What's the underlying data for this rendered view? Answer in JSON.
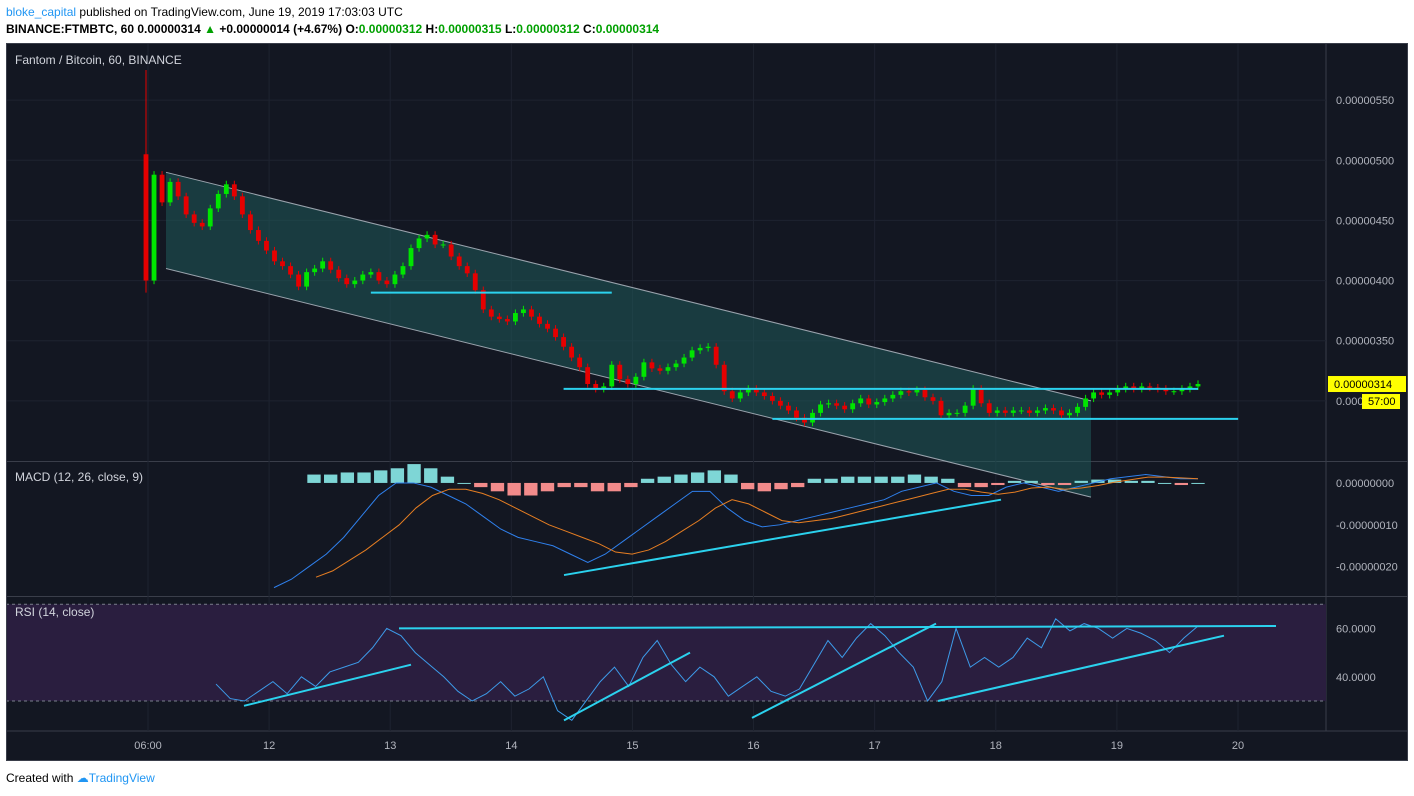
{
  "header": {
    "author": "bloke_capital",
    "published": "published on TradingView.com, June 19, 2019 17:03:03 UTC",
    "symbol": "BINANCE:FTMBTC, 60",
    "last": "0.00000314",
    "change": "+0.00000014 (+4.67%)",
    "o_label": "O:",
    "o": "0.00000312",
    "h_label": "H:",
    "h": "0.00000315",
    "l_label": "L:",
    "l": "0.00000312",
    "c_label": "C:",
    "c": "0.00000314"
  },
  "footer": {
    "created": "Created with",
    "brand": "TradingView"
  },
  "colors": {
    "background": "#131722",
    "up": "#00e600",
    "down": "#e60000",
    "trendline": "#2bd2ee",
    "channel_fill": "#1f5a5a",
    "macd_line": "#2f80ed",
    "signal_line": "#e67e22",
    "rsi_line": "#3d9be9",
    "rsi_band": "#2a1e3f",
    "price_tag": "#ffff00"
  },
  "chart_data": [
    {
      "type": "candlestick",
      "title": "Fantom / Bitcoin, 60, BINANCE",
      "price_tag": "0.00000314",
      "countdown": "57:00",
      "y_ticks": [
        "0.00000550",
        "0.00000500",
        "0.00000450",
        "0.00000400",
        "0.00000350",
        "0.00000300"
      ],
      "x_ticks": [
        "06:00",
        "12",
        "13",
        "14",
        "15",
        "16",
        "17",
        "18",
        "19",
        "20"
      ],
      "ylim": [
        2.5e-06,
        5.95e-06
      ],
      "series": [
        {
          "name": "FTMBTC",
          "close": [
            4e-06,
            4.88e-06,
            4.65e-06,
            4.82e-06,
            4.7e-06,
            4.55e-06,
            4.48e-06,
            4.45e-06,
            4.6e-06,
            4.72e-06,
            4.8e-06,
            4.7e-06,
            4.55e-06,
            4.42e-06,
            4.33e-06,
            4.25e-06,
            4.16e-06,
            4.12e-06,
            4.05e-06,
            3.95e-06,
            4.07e-06,
            4.1e-06,
            4.16e-06,
            4.09e-06,
            4.02e-06,
            3.97e-06,
            4e-06,
            4.05e-06,
            4.07e-06,
            4e-06,
            3.97e-06,
            4.05e-06,
            4.12e-06,
            4.27e-06,
            4.35e-06,
            4.38e-06,
            4.3e-06,
            4.3e-06,
            4.2e-06,
            4.12e-06,
            4.06e-06,
            3.92e-06,
            3.76e-06,
            3.7e-06,
            3.68e-06,
            3.66e-06,
            3.73e-06,
            3.76e-06,
            3.7e-06,
            3.64e-06,
            3.6e-06,
            3.53e-06,
            3.45e-06,
            3.36e-06,
            3.28e-06,
            3.14e-06,
            3.1e-06,
            3.12e-06,
            3.3e-06,
            3.18e-06,
            3.14e-06,
            3.2e-06,
            3.32e-06,
            3.27e-06,
            3.25e-06,
            3.28e-06,
            3.31e-06,
            3.36e-06,
            3.42e-06,
            3.44e-06,
            3.45e-06,
            3.3e-06,
            3.08e-06,
            3.02e-06,
            3.07e-06,
            3.1e-06,
            3.07e-06,
            3.04e-06,
            3e-06,
            2.96e-06,
            2.92e-06,
            2.86e-06,
            2.82e-06,
            2.9e-06,
            2.97e-06,
            2.98e-06,
            2.96e-06,
            2.93e-06,
            2.98e-06,
            3.02e-06,
            2.97e-06,
            2.99e-06,
            3.02e-06,
            3.05e-06,
            3.08e-06,
            3.07e-06,
            3.09e-06,
            3.03e-06,
            3e-06,
            2.88e-06,
            2.9e-06,
            2.9e-06,
            2.96e-06,
            3.1e-06,
            2.98e-06,
            2.9e-06,
            2.92e-06,
            2.9e-06,
            2.92e-06,
            2.92e-06,
            2.9e-06,
            2.92e-06,
            2.94e-06,
            2.92e-06,
            2.88e-06,
            2.9e-06,
            2.95e-06,
            3.02e-06,
            3.07e-06,
            3.05e-06,
            3.07e-06,
            3.1e-06,
            3.12e-06,
            3.1e-06,
            3.12e-06,
            3.11e-06,
            3.1e-06,
            3.08e-06,
            3.08e-06,
            3.1e-06,
            3.12e-06,
            3.14e-06
          ]
        }
      ],
      "channel": {
        "upper": [
          4.9e-06,
          3e-06
        ],
        "lower": [
          4.1e-06,
          2.2e-06
        ]
      },
      "levels": [
        {
          "value": 3.9e-06,
          "x0": 28,
          "x1": 58
        },
        {
          "value": 3.1e-06,
          "x0": 52,
          "x1": 131
        },
        {
          "value": 2.85e-06,
          "x0": 78,
          "x1": 136
        }
      ]
    },
    {
      "type": "line",
      "title": "MACD (12, 26, close, 9)",
      "y_ticks": [
        "0.00000000",
        "-0.00000010",
        "-0.00000020"
      ],
      "ylim": [
        -2.7e-07,
        5e-08
      ],
      "series": [
        {
          "name": "MACD",
          "values": [
            -2.5e-07,
            -2.3e-07,
            -2e-07,
            -1.7e-07,
            -1.3e-07,
            -8e-08,
            -3e-08,
            0,
            0,
            -1e-08,
            -3e-08,
            -5e-08,
            -8e-08,
            -1.1e-07,
            -1.3e-07,
            -1.4e-07,
            -1.5e-07,
            -1.7e-07,
            -1.9e-07,
            -1.7e-07,
            -1.4e-07,
            -1.1e-07,
            -8e-08,
            -5e-08,
            -2e-08,
            -2e-08,
            -6e-08,
            -9e-08,
            -1.05e-07,
            -1e-07,
            -9e-08,
            -8e-08,
            -7e-08,
            -6e-08,
            -5e-08,
            -4e-08,
            -2e-08,
            -1e-08,
            0,
            -2e-08,
            -3e-08,
            -3e-08,
            -1e-08,
            0,
            -1e-08,
            -2e-08,
            -1e-08,
            0,
            1e-08,
            1.5e-08,
            2e-08,
            1.5e-08,
            1e-08,
            1e-08
          ]
        },
        {
          "name": "Signal",
          "values": [
            -2.25e-07,
            -2.1e-07,
            -1.85e-07,
            -1.6e-07,
            -1.3e-07,
            -1e-07,
            -6e-08,
            -3e-08,
            -1.5e-08,
            -1.5e-08,
            -2.5e-08,
            -4e-08,
            -6e-08,
            -8e-08,
            -1e-07,
            -1.15e-07,
            -1.3e-07,
            -1.45e-07,
            -1.65e-07,
            -1.7e-07,
            -1.6e-07,
            -1.4e-07,
            -1.15e-07,
            -9e-08,
            -6e-08,
            -4e-08,
            -5e-08,
            -7e-08,
            -9e-08,
            -9.5e-08,
            -9e-08,
            -8.5e-08,
            -7.5e-08,
            -6.5e-08,
            -5.5e-08,
            -4.5e-08,
            -3.5e-08,
            -2.5e-08,
            -1.5e-08,
            -1.5e-08,
            -2.2e-08,
            -2.7e-08,
            -2.2e-08,
            -1.2e-08,
            -1e-08,
            -1.5e-08,
            -1.2e-08,
            -6e-09,
            2e-09,
            8e-09,
            1.4e-08,
            1.4e-08,
            1.2e-08,
            1e-08
          ]
        }
      ],
      "histogram": [
        2e-08,
        2e-08,
        2.5e-08,
        2.5e-08,
        3e-08,
        3.5e-08,
        4.5e-08,
        3.5e-08,
        1.5e-08,
        0,
        -1e-08,
        -2e-08,
        -3e-08,
        -3e-08,
        -2e-08,
        -1e-08,
        -1e-08,
        -2e-08,
        -2e-08,
        -1e-08,
        1e-08,
        1.5e-08,
        2e-08,
        2.5e-08,
        3e-08,
        2e-08,
        -1.5e-08,
        -2e-08,
        -1.5e-08,
        -1e-08,
        1e-08,
        1e-08,
        1.5e-08,
        1.5e-08,
        1.5e-08,
        1.5e-08,
        2e-08,
        1.5e-08,
        1e-08,
        -1e-08,
        -1e-08,
        -5e-09,
        5e-09,
        5e-09,
        -5e-09,
        -5e-09,
        5e-09,
        8e-09,
        8e-09,
        5e-09,
        5e-09,
        0,
        -5e-09,
        0
      ]
    },
    {
      "type": "line",
      "title": "RSI (14, close)",
      "y_ticks": [
        "60.0000",
        "40.0000"
      ],
      "ylim": [
        18,
        73
      ],
      "band": [
        30,
        70
      ],
      "series": [
        {
          "name": "RSI",
          "values": [
            37,
            31,
            30,
            34,
            38,
            33,
            40,
            36,
            42,
            44,
            46,
            52,
            60,
            57,
            50,
            45,
            40,
            34,
            30,
            33,
            38,
            32,
            35,
            40,
            26,
            22,
            30,
            38,
            44,
            36,
            48,
            55,
            45,
            38,
            44,
            40,
            32,
            36,
            40,
            34,
            32,
            35,
            45,
            55,
            48,
            56,
            62,
            57,
            50,
            44,
            30,
            38,
            60,
            44,
            48,
            44,
            48,
            56,
            52,
            64,
            59,
            62,
            60,
            56,
            60,
            58,
            55,
            50,
            56,
            61
          ]
        }
      ]
    }
  ]
}
